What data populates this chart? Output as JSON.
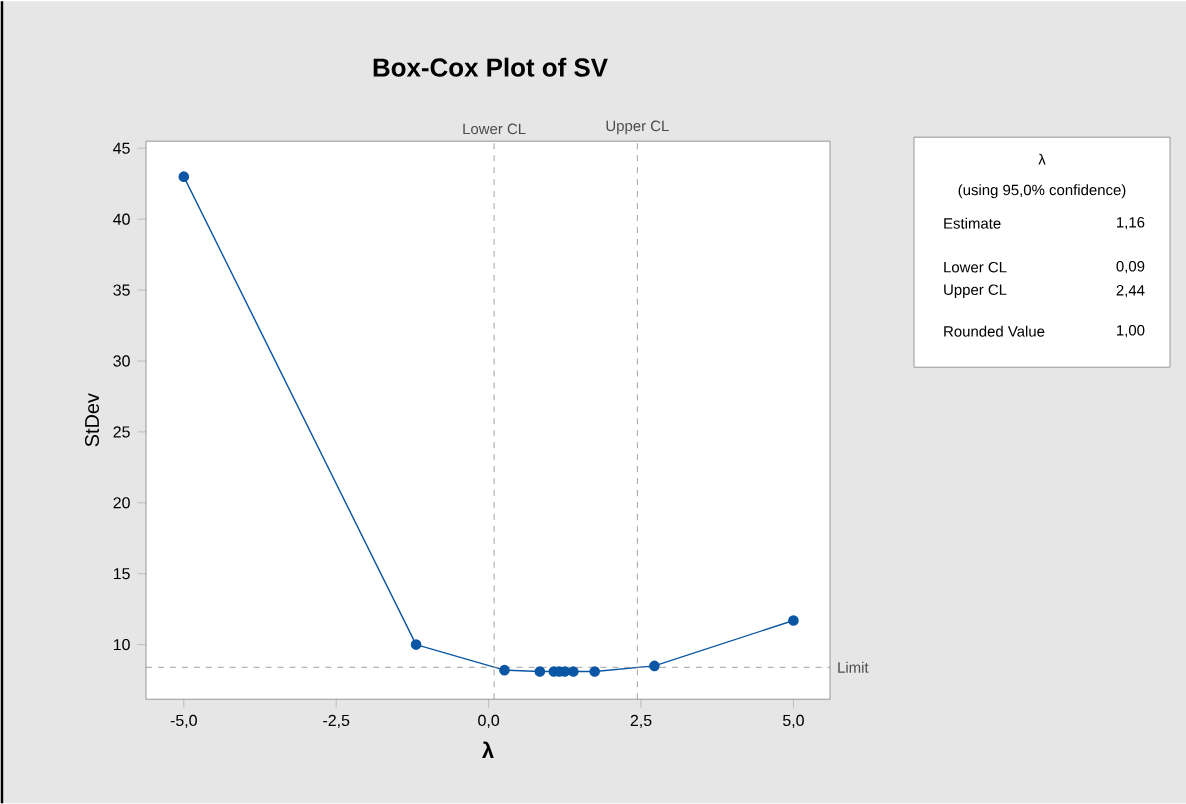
{
  "chart_data": {
    "type": "line",
    "title": "Box-Cox Plot of SV",
    "xlabel": "λ",
    "ylabel": "StDev",
    "x": [
      -5,
      -1.19,
      0.26,
      0.84,
      1.07,
      1.16,
      1.25,
      1.39,
      1.74,
      2.72,
      5
    ],
    "series": [
      {
        "color": "#0a56a4",
        "values": [
          43.0,
          10.0,
          8.2,
          8.1,
          8.1,
          8.1,
          8.1,
          8.1,
          8.1,
          8.5,
          11.7
        ]
      }
    ],
    "xlim": [
      -5.62,
      5.6
    ],
    "ylim": [
      6.15,
      45.5
    ],
    "xticks": [
      {
        "value": -5,
        "label": "-5,0"
      },
      {
        "value": -2.5,
        "label": "-2,5"
      },
      {
        "value": 0,
        "label": "0,0"
      },
      {
        "value": 2.5,
        "label": "2,5"
      },
      {
        "value": 5,
        "label": "5,0"
      }
    ],
    "yticks": [
      10,
      15,
      20,
      25,
      30,
      35,
      40,
      45
    ],
    "ref_lines": [
      {
        "axis": "x",
        "value": 0.09,
        "label": "Lower CL",
        "line_style": "dashed",
        "color": "#8c8c8c"
      },
      {
        "axis": "x",
        "value": 2.44,
        "label": "Upper CL",
        "line_style": "dashed",
        "color": "#8c8c8c"
      },
      {
        "axis": "y",
        "value": 8.4,
        "label": "Limit",
        "line_style": "dashed",
        "color": "#8c8c8c"
      }
    ],
    "annotations": [
      "λ",
      "(using 95,0% confidence)",
      "Estimate",
      "1,16",
      "Lower CL",
      "0,09",
      "Upper CL",
      "2,44",
      "Rounded Value",
      "1,00"
    ],
    "marker": "circle",
    "line_style": "solid",
    "grid": false
  }
}
